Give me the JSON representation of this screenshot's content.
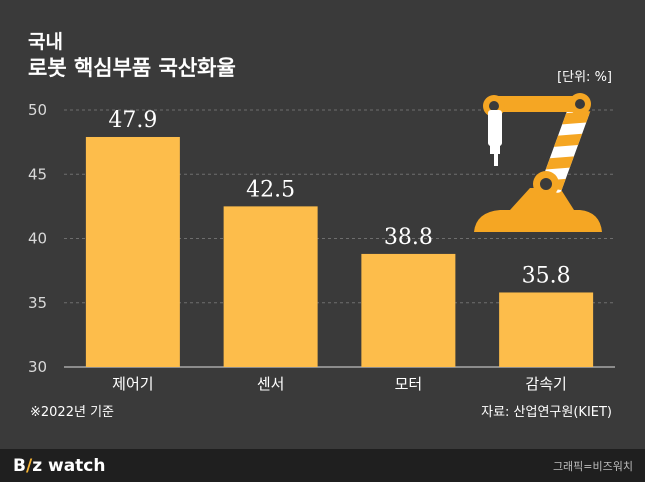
{
  "title": {
    "line1": "국내",
    "line2": "로봇 핵심부품 국산화율"
  },
  "unit_label": "[단위: %]",
  "note": "※2022년 기준",
  "source": "자료: 산업연구원(KIET)",
  "footer": {
    "logo_prefix": "B",
    "logo_slash": "/",
    "logo_suffix": "z watch",
    "credit": "그래픽=비즈워치"
  },
  "colors": {
    "background": "#3a3a3a",
    "bar": "#fdbd4b",
    "robot_orange": "#f5a623"
  },
  "chart_data": {
    "type": "bar",
    "categories": [
      "제어기",
      "센서",
      "모터",
      "감속기"
    ],
    "values": [
      47.9,
      42.5,
      38.8,
      35.8
    ],
    "value_labels": [
      "47.9",
      "42.5",
      "38.8",
      "35.8"
    ],
    "yticks": [
      "50",
      "45",
      "40",
      "35",
      "30"
    ],
    "ylim": [
      30,
      50
    ],
    "grid": true,
    "title": "",
    "xlabel": "",
    "ylabel": ""
  }
}
